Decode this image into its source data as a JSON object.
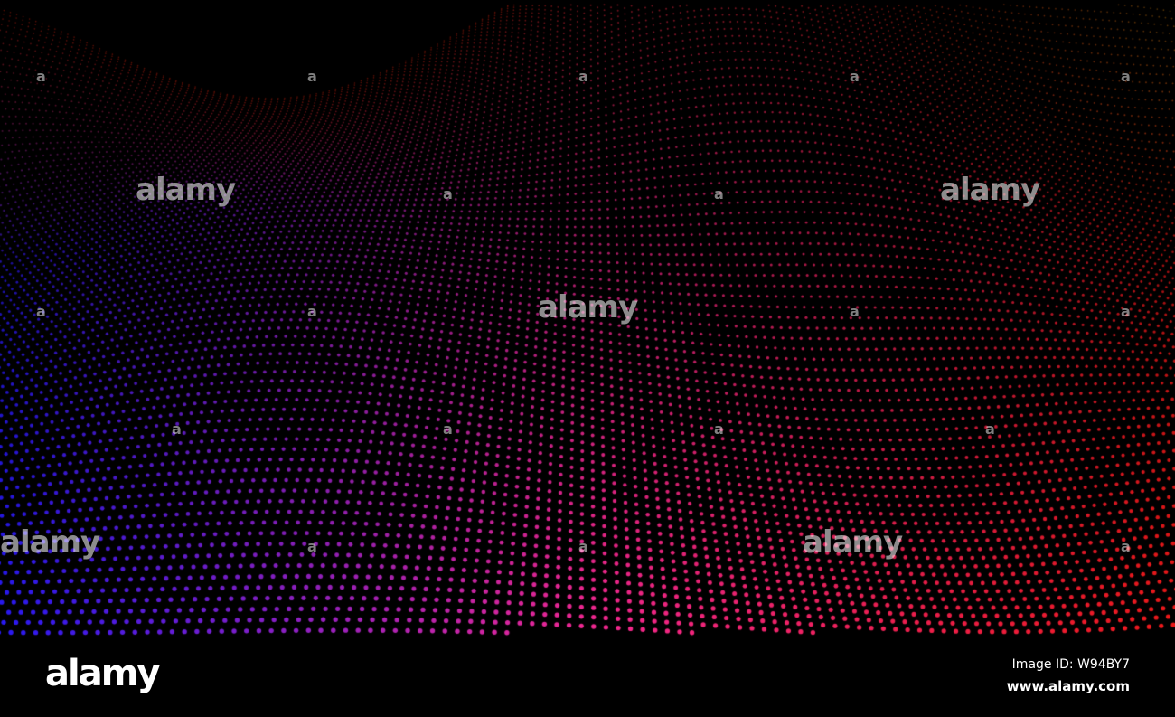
{
  "image": {
    "description_icon": "particle-wave-landscape",
    "colors": {
      "left": "#2a1aff",
      "middle": "#ff2a9a",
      "right": "#ff1a1a",
      "top": "#ff2a10",
      "top_right": "#d4a010",
      "background": "#000000"
    }
  },
  "watermark": {
    "text": "alamy"
  },
  "footer": {
    "logo": "alamy",
    "image_id": "Image ID: W94BY7",
    "site": "www.alamy.com"
  }
}
